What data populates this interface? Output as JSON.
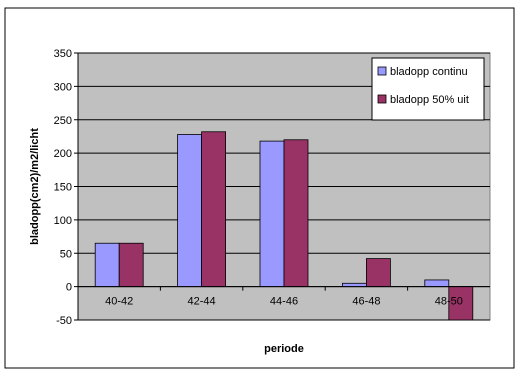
{
  "chart_data": {
    "type": "bar",
    "categories": [
      "40-42",
      "42-44",
      "44-46",
      "46-48",
      "48-50"
    ],
    "series": [
      {
        "name": "bladopp continu",
        "values": [
          65,
          228,
          218,
          5,
          10
        ],
        "color": "#9999ff"
      },
      {
        "name": "bladopp 50% uit",
        "values": [
          65,
          232,
          220,
          42,
          -50
        ],
        "color": "#993366"
      }
    ],
    "title": "",
    "xlabel": "periode",
    "ylabel": "bladopp(cm2)/m2/licht",
    "ylim": [
      -50,
      350
    ],
    "yticks": [
      -50,
      0,
      50,
      100,
      150,
      200,
      250,
      300,
      350
    ],
    "plot_background": "#c0c0c0",
    "grid": true,
    "legend_position": "top-right"
  }
}
